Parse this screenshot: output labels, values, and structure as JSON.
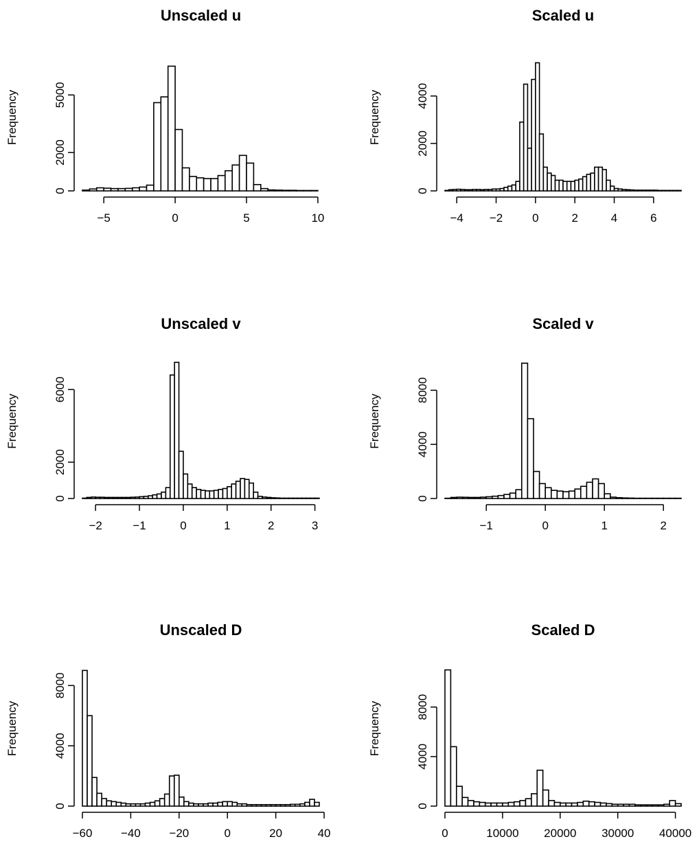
{
  "chart_data": [
    {
      "type": "bar",
      "title": "Unscaled u",
      "xlabel": "",
      "ylabel": "Frequency",
      "xlim": [
        -6.5,
        10.1
      ],
      "ylim": [
        0,
        6800
      ],
      "xticks": [
        -5,
        0,
        5,
        10
      ],
      "xtick_labels": [
        "−5",
        "0",
        "5",
        "10"
      ],
      "yticks": [
        0,
        2000,
        5000
      ],
      "ytick_labels": [
        "0",
        "2000",
        "5000"
      ],
      "bin_width": 0.5,
      "x": [
        -6.5,
        -6.0,
        -5.5,
        -5.0,
        -4.5,
        -4.0,
        -3.5,
        -3.0,
        -2.5,
        -2.0,
        -1.5,
        -1.0,
        -0.5,
        0.0,
        0.5,
        1.0,
        1.5,
        2.0,
        2.5,
        3.0,
        3.5,
        4.0,
        4.5,
        5.0,
        5.5,
        6.0,
        6.5,
        7.0,
        7.5,
        8.0,
        8.5,
        9.0,
        9.5
      ],
      "values": [
        40,
        100,
        160,
        140,
        120,
        120,
        130,
        160,
        200,
        300,
        4600,
        4900,
        6500,
        3200,
        1200,
        750,
        680,
        640,
        640,
        800,
        1050,
        1350,
        1850,
        1450,
        330,
        120,
        50,
        40,
        30,
        30,
        20,
        20,
        20
      ]
    },
    {
      "type": "bar",
      "title": "Scaled u",
      "xlabel": "",
      "ylabel": "Frequency",
      "xlim": [
        -4.6,
        7.4
      ],
      "ylim": [
        0,
        5500
      ],
      "xticks": [
        -4,
        -2,
        0,
        2,
        4,
        6
      ],
      "xtick_labels": [
        "−4",
        "−2",
        "0",
        "2",
        "4",
        "6"
      ],
      "yticks": [
        0,
        2000,
        4000
      ],
      "ytick_labels": [
        "0",
        "2000",
        "4000"
      ],
      "bin_width": 0.2,
      "x": [
        -4.6,
        -4.4,
        -4.2,
        -4.0,
        -3.8,
        -3.6,
        -3.4,
        -3.2,
        -3.0,
        -2.8,
        -2.6,
        -2.4,
        -2.2,
        -2.0,
        -1.8,
        -1.6,
        -1.4,
        -1.2,
        -1.0,
        -0.8,
        -0.6,
        -0.4,
        -0.2,
        0.0,
        0.2,
        0.4,
        0.6,
        0.8,
        1.0,
        1.2,
        1.4,
        1.6,
        1.8,
        2.0,
        2.2,
        2.4,
        2.6,
        2.8,
        3.0,
        3.2,
        3.4,
        3.6,
        3.8,
        4.0,
        4.2,
        4.4,
        4.6,
        4.8,
        5.0,
        5.2,
        5.4,
        5.6,
        5.8,
        6.0,
        6.2,
        6.4,
        6.6,
        6.8,
        7.0,
        7.2
      ],
      "values": [
        20,
        50,
        60,
        70,
        60,
        50,
        50,
        60,
        60,
        50,
        60,
        60,
        80,
        80,
        100,
        150,
        200,
        250,
        400,
        2900,
        4500,
        1800,
        4700,
        5400,
        2400,
        1000,
        750,
        650,
        450,
        450,
        400,
        400,
        400,
        450,
        500,
        600,
        700,
        750,
        1000,
        1000,
        900,
        450,
        200,
        100,
        80,
        60,
        50,
        40,
        30,
        30,
        30,
        30,
        30,
        30,
        20,
        20,
        20,
        20,
        20,
        20
      ]
    },
    {
      "type": "bar",
      "title": "Unscaled v",
      "xlabel": "",
      "ylabel": "Frequency",
      "xlim": [
        -2.3,
        3.1
      ],
      "ylim": [
        0,
        7600
      ],
      "xticks": [
        -2,
        -1,
        0,
        1,
        2,
        3
      ],
      "xtick_labels": [
        "−2",
        "−1",
        "0",
        "1",
        "2",
        "3"
      ],
      "yticks": [
        0,
        2000,
        6000
      ],
      "ytick_labels": [
        "0",
        "2000",
        "6000"
      ],
      "bin_width": 0.1,
      "x": [
        -2.3,
        -2.2,
        -2.1,
        -2.0,
        -1.9,
        -1.8,
        -1.7,
        -1.6,
        -1.5,
        -1.4,
        -1.3,
        -1.2,
        -1.1,
        -1.0,
        -0.9,
        -0.8,
        -0.7,
        -0.6,
        -0.5,
        -0.4,
        -0.3,
        -0.2,
        -0.1,
        0.0,
        0.1,
        0.2,
        0.3,
        0.4,
        0.5,
        0.6,
        0.7,
        0.8,
        0.9,
        1.0,
        1.1,
        1.2,
        1.3,
        1.4,
        1.5,
        1.6,
        1.7,
        1.8,
        1.9,
        2.0,
        2.1,
        2.2,
        2.3,
        2.4,
        2.5,
        2.6,
        2.7,
        2.8,
        2.9,
        3.0
      ],
      "values": [
        20,
        60,
        80,
        70,
        70,
        60,
        60,
        60,
        60,
        60,
        60,
        70,
        80,
        100,
        120,
        150,
        200,
        250,
        350,
        600,
        6800,
        7500,
        2600,
        1350,
        800,
        600,
        500,
        450,
        420,
        420,
        450,
        500,
        550,
        650,
        800,
        950,
        1100,
        1050,
        850,
        350,
        120,
        80,
        60,
        40,
        30,
        20,
        20,
        20,
        20,
        20,
        20,
        20,
        20,
        20
      ]
    },
    {
      "type": "bar",
      "title": "Scaled v",
      "xlabel": "",
      "ylabel": "Frequency",
      "xlim": [
        -1.7,
        2.3
      ],
      "ylim": [
        0,
        10200
      ],
      "xticks": [
        -1,
        0,
        1,
        2
      ],
      "xtick_labels": [
        "−1",
        "0",
        "1",
        "2"
      ],
      "yticks": [
        0,
        4000,
        8000
      ],
      "ytick_labels": [
        "0",
        "4000",
        "8000"
      ],
      "bin_width": 0.1,
      "x": [
        -1.7,
        -1.6,
        -1.5,
        -1.4,
        -1.3,
        -1.2,
        -1.1,
        -1.0,
        -0.9,
        -0.8,
        -0.7,
        -0.6,
        -0.5,
        -0.4,
        -0.3,
        -0.2,
        -0.1,
        0.0,
        0.1,
        0.2,
        0.3,
        0.4,
        0.5,
        0.6,
        0.7,
        0.8,
        0.9,
        1.0,
        1.1,
        1.2,
        1.3,
        1.4,
        1.5,
        1.6,
        1.7,
        1.8,
        1.9,
        2.0,
        2.1,
        2.2
      ],
      "values": [
        20,
        80,
        100,
        90,
        80,
        80,
        100,
        130,
        170,
        220,
        300,
        400,
        650,
        10000,
        5900,
        2000,
        1100,
        800,
        600,
        550,
        500,
        550,
        700,
        900,
        1200,
        1450,
        1100,
        350,
        100,
        60,
        40,
        30,
        20,
        20,
        20,
        20,
        20,
        20,
        20,
        20
      ]
    },
    {
      "type": "bar",
      "title": "Unscaled D",
      "xlabel": "",
      "ylabel": "Frequency",
      "xlim": [
        -60,
        38
      ],
      "ylim": [
        0,
        9200
      ],
      "xticks": [
        -60,
        -40,
        -20,
        0,
        20,
        40
      ],
      "xtick_labels": [
        "−60",
        "−40",
        "−20",
        "0",
        "20",
        "40"
      ],
      "yticks": [
        0,
        4000,
        8000
      ],
      "ytick_labels": [
        "0",
        "4000",
        "8000"
      ],
      "bin_width": 2,
      "x": [
        -60,
        -58,
        -56,
        -54,
        -52,
        -50,
        -48,
        -46,
        -44,
        -42,
        -40,
        -38,
        -36,
        -34,
        -32,
        -30,
        -28,
        -26,
        -24,
        -22,
        -20,
        -18,
        -16,
        -14,
        -12,
        -10,
        -8,
        -6,
        -4,
        -2,
        0,
        2,
        4,
        6,
        8,
        10,
        12,
        14,
        16,
        18,
        20,
        22,
        24,
        26,
        28,
        30,
        32,
        34,
        36
      ],
      "values": [
        9000,
        6000,
        1900,
        850,
        500,
        350,
        300,
        250,
        200,
        150,
        150,
        150,
        150,
        200,
        250,
        350,
        500,
        800,
        2000,
        2050,
        600,
        300,
        200,
        150,
        150,
        150,
        200,
        200,
        250,
        300,
        300,
        250,
        150,
        150,
        100,
        100,
        100,
        100,
        100,
        100,
        100,
        100,
        100,
        120,
        120,
        150,
        250,
        450,
        250
      ]
    },
    {
      "type": "bar",
      "title": "Scaled D",
      "xlabel": "",
      "ylabel": "Frequency",
      "xlim": [
        0,
        41000
      ],
      "ylim": [
        0,
        11200
      ],
      "xticks": [
        0,
        10000,
        20000,
        30000,
        40000
      ],
      "xtick_labels": [
        "0",
        "10000",
        "20000",
        "30000",
        "40000"
      ],
      "yticks": [
        0,
        4000,
        8000
      ],
      "ytick_labels": [
        "0",
        "4000",
        "8000"
      ],
      "bin_width": 1000,
      "x": [
        0,
        1000,
        2000,
        3000,
        4000,
        5000,
        6000,
        7000,
        8000,
        9000,
        10000,
        11000,
        12000,
        13000,
        14000,
        15000,
        16000,
        17000,
        18000,
        19000,
        20000,
        21000,
        22000,
        23000,
        24000,
        25000,
        26000,
        27000,
        28000,
        29000,
        30000,
        31000,
        32000,
        33000,
        34000,
        35000,
        36000,
        37000,
        38000,
        39000,
        40000
      ],
      "values": [
        11000,
        4800,
        1600,
        700,
        450,
        350,
        300,
        250,
        250,
        250,
        250,
        300,
        350,
        450,
        600,
        1000,
        2900,
        1300,
        450,
        300,
        250,
        250,
        250,
        300,
        400,
        350,
        300,
        250,
        200,
        150,
        150,
        150,
        150,
        100,
        100,
        100,
        100,
        100,
        150,
        450,
        200
      ]
    }
  ]
}
